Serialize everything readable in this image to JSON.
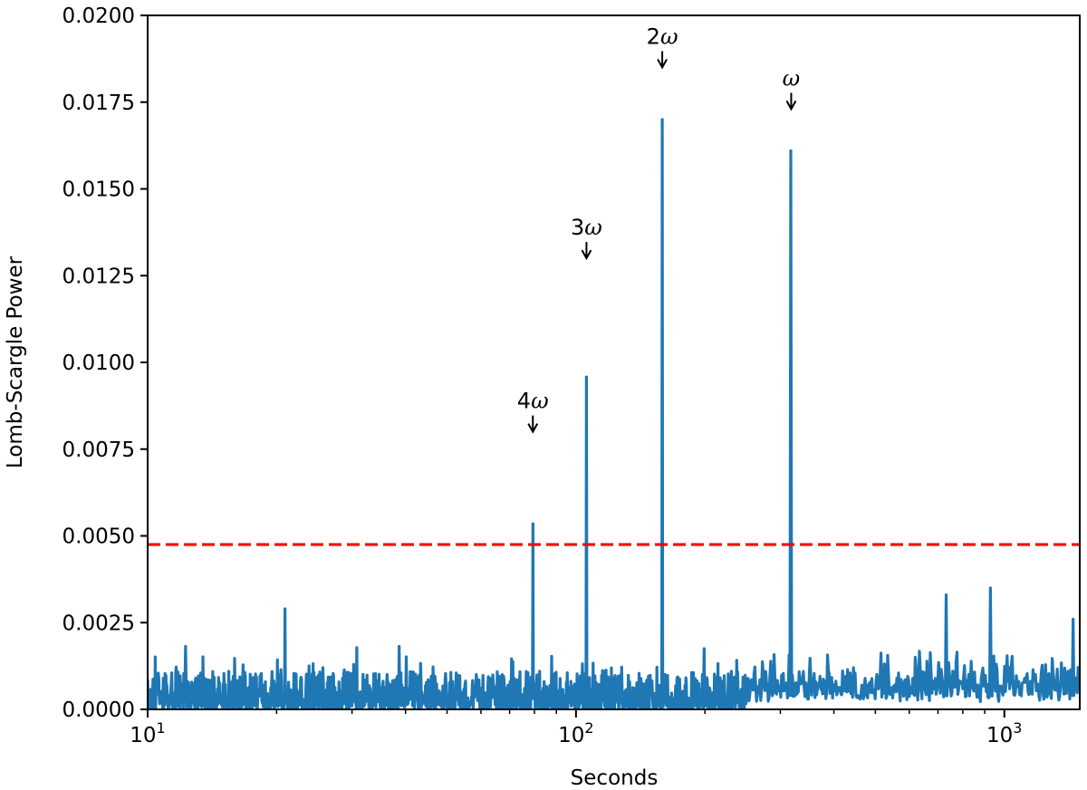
{
  "chart_data": {
    "type": "line",
    "title": "",
    "xlabel": "Seconds",
    "ylabel": "Lomb-Scargle Power",
    "xscale": "log",
    "xlim": [
      10,
      1500
    ],
    "ylim": [
      0,
      0.02
    ],
    "grid": false,
    "legend": "none",
    "x_tick_labels": [
      {
        "value": 10,
        "base": "10",
        "exp": "1"
      },
      {
        "value": 100,
        "base": "10",
        "exp": "2"
      },
      {
        "value": 1000,
        "base": "10",
        "exp": "3"
      }
    ],
    "y_ticks": [
      0.0,
      0.0025,
      0.005,
      0.0075,
      0.01,
      0.0125,
      0.015,
      0.0175,
      0.02
    ],
    "y_tick_labels": [
      "0.0000",
      "0.0025",
      "0.0050",
      "0.0075",
      "0.0100",
      "0.0125",
      "0.0150",
      "0.0175",
      "0.0200"
    ],
    "series": [
      {
        "color": "#1f77b4",
        "peaks": [
          {
            "x": 20.9,
            "y": 0.0029
          },
          {
            "x": 79.3,
            "y": 0.00535
          },
          {
            "x": 105.8,
            "y": 0.00958
          },
          {
            "x": 159.0,
            "y": 0.017
          },
          {
            "x": 318.0,
            "y": 0.0161
          },
          {
            "x": 730,
            "y": 0.0033
          },
          {
            "x": 930,
            "y": 0.0035
          },
          {
            "x": 1450,
            "y": 0.0026
          }
        ]
      }
    ],
    "threshold": {
      "y": 0.00475,
      "color": "#ff0000",
      "style": "dashed"
    },
    "annotations": [
      {
        "prefix": "4",
        "symbol": "ω",
        "x": 79.3,
        "y": 0.008
      },
      {
        "prefix": "3",
        "symbol": "ω",
        "x": 105.8,
        "y": 0.013
      },
      {
        "prefix": "2",
        "symbol": "ω",
        "x": 159.0,
        "y": 0.0185
      },
      {
        "prefix": "",
        "symbol": "ω",
        "x": 318.0,
        "y": 0.0173
      }
    ]
  }
}
